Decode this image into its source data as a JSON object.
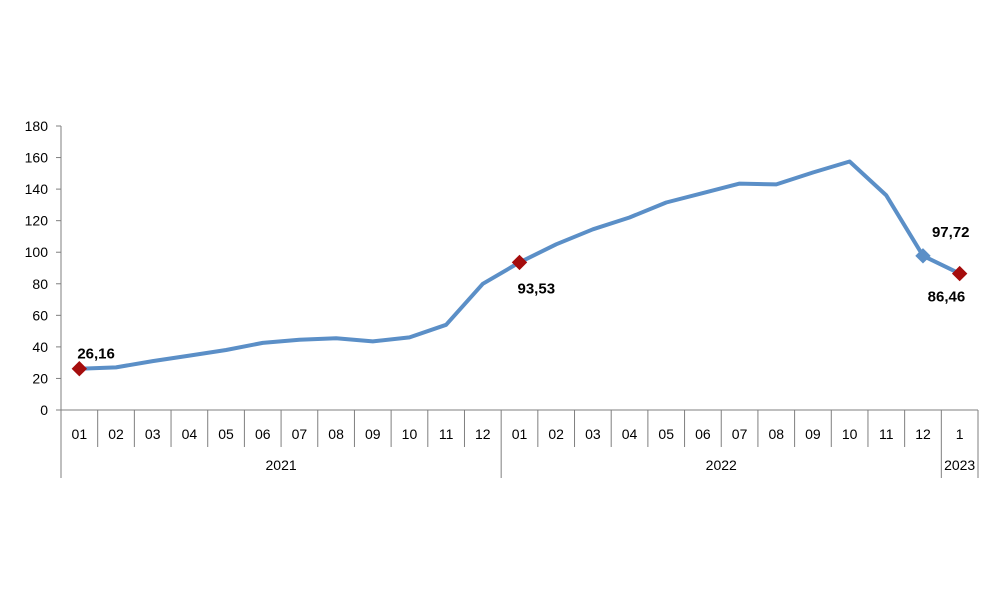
{
  "chart_data": {
    "type": "line",
    "title": "",
    "xlabel": "",
    "ylabel": "",
    "ylim": [
      0,
      180
    ],
    "yticks": [
      0,
      20,
      40,
      60,
      80,
      100,
      120,
      140,
      160,
      180
    ],
    "ytick_labels": [
      "0",
      "20",
      "40",
      "60",
      "80",
      "100",
      "120",
      "140",
      "160",
      "180"
    ],
    "grid": false,
    "legend": "none",
    "categories": [
      "01",
      "02",
      "03",
      "04",
      "05",
      "06",
      "07",
      "08",
      "09",
      "10",
      "11",
      "12",
      "01",
      "02",
      "03",
      "04",
      "05",
      "06",
      "07",
      "08",
      "09",
      "10",
      "11",
      "12",
      "1"
    ],
    "year_groups": [
      {
        "label": "2021",
        "start": 0,
        "count": 12
      },
      {
        "label": "2022",
        "start": 12,
        "count": 12
      },
      {
        "label": "2023",
        "start": 24,
        "count": 1
      }
    ],
    "series": [
      {
        "color": "#5b8fc7",
        "values": [
          26.16,
          27,
          31,
          34.5,
          38,
          42.5,
          44.5,
          45.5,
          43.5,
          46,
          54,
          80,
          93.53,
          105,
          114.5,
          122,
          131.5,
          137.5,
          143.5,
          143,
          150.5,
          157.5,
          136,
          97.72,
          86.46
        ]
      }
    ],
    "highlight_marker_color": "#a50d0d",
    "annotations": [
      {
        "index": 0,
        "text": "26,16",
        "position": "above",
        "marker": "red"
      },
      {
        "index": 12,
        "text": "93,53",
        "position": "below",
        "marker": "red"
      },
      {
        "index": 23,
        "text": "97,72",
        "position": "above-right",
        "marker": "blue"
      },
      {
        "index": 24,
        "text": "86,46",
        "position": "below",
        "marker": "red"
      }
    ]
  }
}
